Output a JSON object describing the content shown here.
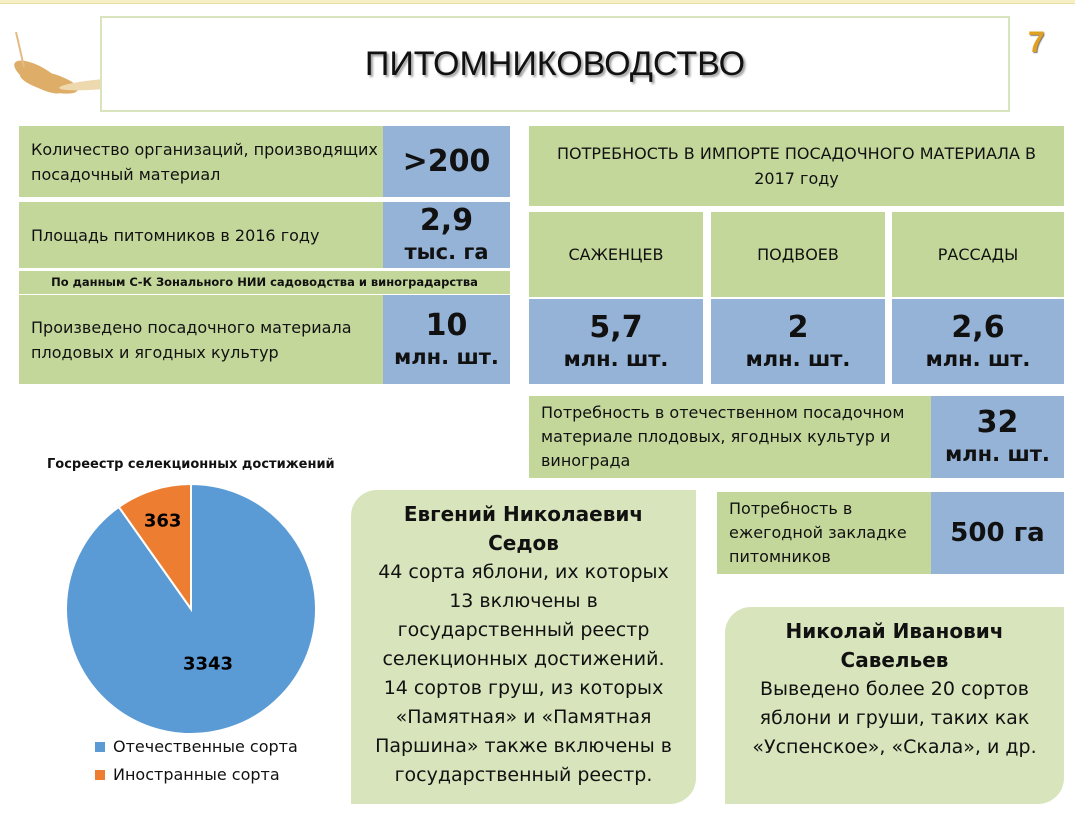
{
  "title": "ПИТОМНИКОВОДСТВО",
  "page_number": "7",
  "left_stats": [
    {
      "label": "Количество организаций, производящих посадочный материал",
      "value": ">200",
      "unit": ""
    },
    {
      "label": "Площадь питомников в 2016 году",
      "value": "2,9",
      "unit": "тыс. га"
    },
    {
      "label": "Произведено посадочного материала плодовых и ягодных культур",
      "value": "10",
      "unit": "млн. шт."
    }
  ],
  "source_note": "По данным С-К Зонального НИИ садоводства и виноградарства",
  "import_need": {
    "header": "ПОТРЕБНОСТЬ В ИМПОРТЕ ПОСАДОЧНОГО МАТЕРИАЛА В 2017 году",
    "columns": [
      {
        "label": "САЖЕНЦЕВ",
        "value": "5,7",
        "unit": "млн. шт."
      },
      {
        "label": "ПОДВОЕВ",
        "value": "2",
        "unit": "млн. шт."
      },
      {
        "label": "РАССАДЫ",
        "value": "2,6",
        "unit": "млн. шт."
      }
    ]
  },
  "domestic_need": {
    "label": "Потребность в отечественном посадочном материале плодовых, ягодных культур и винограда",
    "value": "32",
    "unit": "млн. шт."
  },
  "annual_need": {
    "label": "Потребность в ежегодной закладке питомников",
    "value": "500 га"
  },
  "sedov": {
    "name": "Евгений Николаевич Седов",
    "text": "44 сорта яблони, их которых 13 включены в государственный реестр селекционных достижений. 14 сортов груш, из которых «Памятная» и «Памятная Паршина» также включены в государственный реестр."
  },
  "savelyev": {
    "name": "Николай Иванович Савельев",
    "text": "Выведено более 20 сортов яблони и груши, таких как «Успенское», «Скала», и др."
  },
  "chart_data": {
    "type": "pie",
    "title": "Госреестр селекционных достижений",
    "series": [
      {
        "name": "Отечественные сорта",
        "value": 3343,
        "color": "#5b9bd5"
      },
      {
        "name": "Иностранные сорта",
        "value": 363,
        "color": "#ed7d31"
      }
    ],
    "legend": "bottom"
  }
}
